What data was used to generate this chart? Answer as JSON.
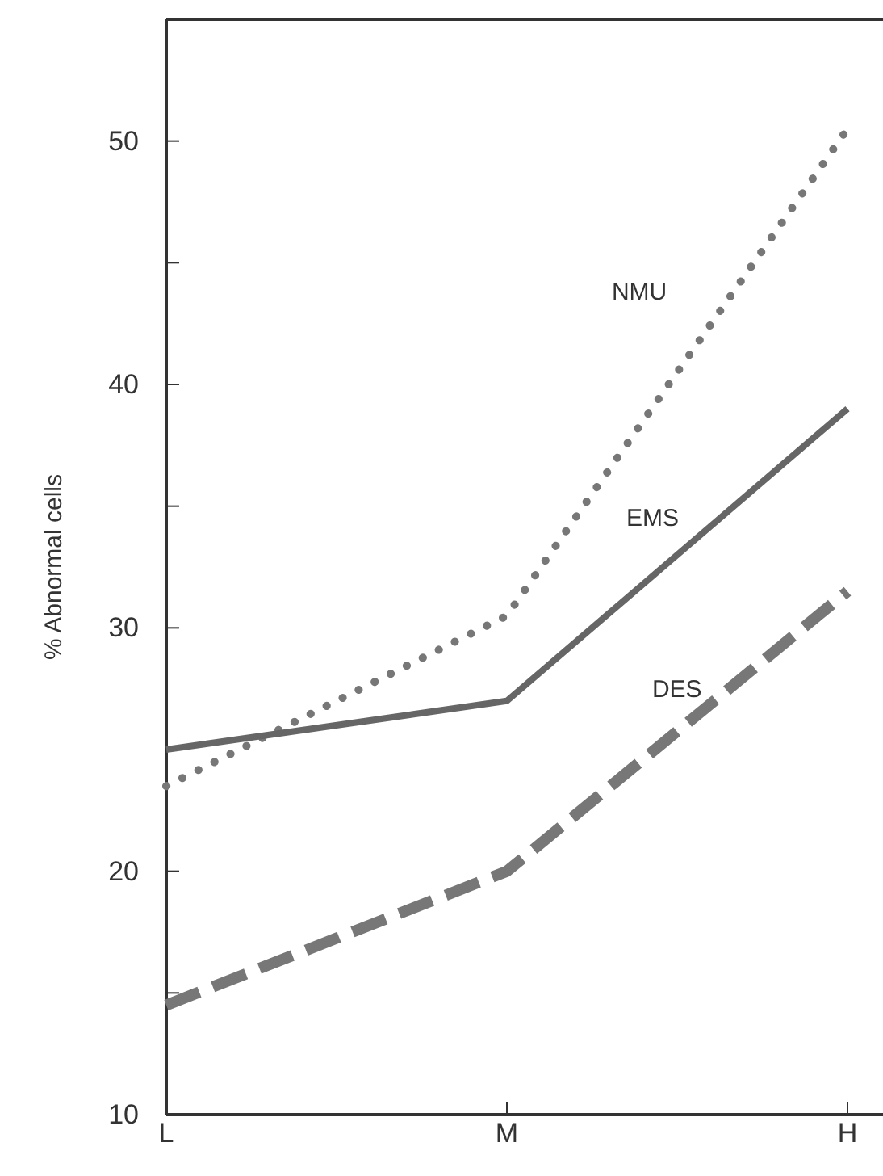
{
  "chart_data": {
    "type": "line",
    "ylabel": "% Abnormal cells",
    "categories": [
      "L",
      "M",
      "H"
    ],
    "ylim": [
      10,
      55
    ],
    "yticks": [
      10,
      {
        "value": 15,
        "label": null
      },
      20,
      {
        "value": 25,
        "label": null
      },
      30,
      {
        "value": 35,
        "label": null
      },
      40,
      {
        "value": 45,
        "label": null
      },
      50
    ],
    "grid": false,
    "series": [
      {
        "name": "NMU",
        "color": "#777777",
        "values": [
          23.5,
          30.5,
          50.5
        ],
        "line_style": "dotted"
      },
      {
        "name": "EMS",
        "color": "#666666",
        "values": [
          25,
          27,
          39
        ],
        "line_style": "solid"
      },
      {
        "name": "DES",
        "color": "#777777",
        "values": [
          14.5,
          20,
          31.5
        ],
        "line_style": "dashed"
      }
    ]
  }
}
